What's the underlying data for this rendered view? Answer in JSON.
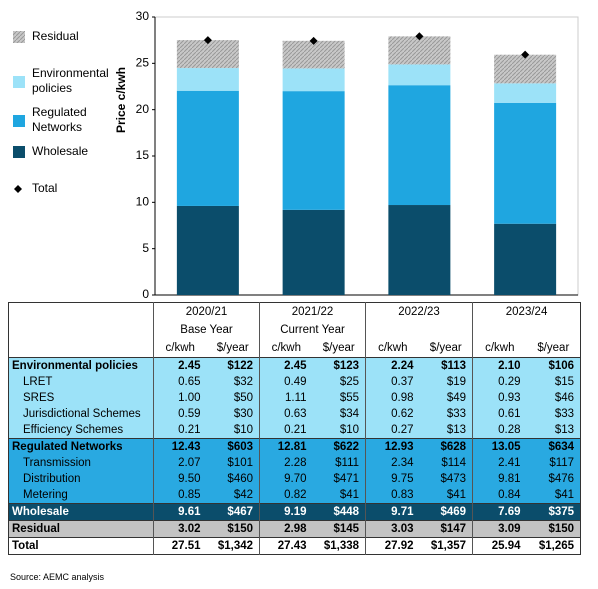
{
  "chart_data": {
    "type": "stacked-bar",
    "y_label": "Price c/kwh",
    "categories": [
      null,
      null,
      null,
      null
    ],
    "ylim": [
      0,
      30
    ],
    "yticks": [
      0,
      5,
      10,
      15,
      20,
      25,
      30
    ],
    "series": [
      {
        "name": "Wholesale",
        "color": "#0b4d6b",
        "values": [
          9.61,
          9.19,
          9.71,
          7.69
        ]
      },
      {
        "name": "Regulated Networks",
        "color": "#1fa6e0",
        "values": [
          12.43,
          12.81,
          12.93,
          13.05
        ]
      },
      {
        "name": "Environmental policies",
        "color": "#9ce2f8",
        "values": [
          2.45,
          2.45,
          2.24,
          2.1
        ]
      },
      {
        "name": "Residual",
        "color": "#bdbdbd",
        "values": [
          3.02,
          2.98,
          3.03,
          3.09
        ]
      },
      {
        "name": "Total",
        "color": "#000000",
        "marker": "diamond",
        "values": [
          27.51,
          27.43,
          27.92,
          25.94
        ]
      }
    ]
  },
  "table": {
    "years": [
      {
        "year": "2020/21",
        "sub": "Base Year"
      },
      {
        "year": "2021/22",
        "sub": "Current Year"
      },
      {
        "year": "2022/23"
      },
      {
        "year": "2023/24"
      }
    ],
    "units": [
      "c/kwh",
      "$/year"
    ],
    "sections": [
      {
        "label": "Environmental policies",
        "values": [
          "2.45",
          "$122",
          "2.45",
          "$123",
          "2.24",
          "$113",
          "2.10",
          "$106"
        ],
        "items": [
          {
            "label": "LRET",
            "values": [
              "0.65",
              "$32",
              "0.49",
              "$25",
              "0.37",
              "$19",
              "0.29",
              "$15"
            ]
          },
          {
            "label": "SRES",
            "values": [
              "1.00",
              "$50",
              "1.11",
              "$55",
              "0.98",
              "$49",
              "0.93",
              "$46"
            ]
          },
          {
            "label": "Jurisdictional Schemes",
            "values": [
              "0.59",
              "$30",
              "0.63",
              "$34",
              "0.62",
              "$33",
              "0.61",
              "$33"
            ]
          },
          {
            "label": "Efficiency Schemes",
            "values": [
              "0.21",
              "$10",
              "0.21",
              "$10",
              "0.27",
              "$13",
              "0.28",
              "$13"
            ]
          }
        ]
      },
      {
        "label": "Regulated Networks",
        "values": [
          "12.43",
          "$603",
          "12.81",
          "$622",
          "12.93",
          "$628",
          "13.05",
          "$634"
        ],
        "items": [
          {
            "label": "Transmission",
            "values": [
              "2.07",
              "$101",
              "2.28",
              "$111",
              "2.34",
              "$114",
              "2.41",
              "$117"
            ]
          },
          {
            "label": "Distribution",
            "values": [
              "9.50",
              "$460",
              "9.70",
              "$471",
              "9.75",
              "$473",
              "9.81",
              "$476"
            ]
          },
          {
            "label": "Metering",
            "values": [
              "0.85",
              "$42",
              "0.82",
              "$41",
              "0.83",
              "$41",
              "0.84",
              "$41"
            ]
          }
        ]
      },
      {
        "label": "Wholesale",
        "values": [
          "9.61",
          "$467",
          "9.19",
          "$448",
          "9.71",
          "$469",
          "7.69",
          "$375"
        ]
      },
      {
        "label": "Residual",
        "values": [
          "3.02",
          "$150",
          "2.98",
          "$145",
          "3.03",
          "$147",
          "3.09",
          "$150"
        ]
      },
      {
        "label": "Total",
        "values": [
          "27.51",
          "$1,342",
          "27.43",
          "$1,338",
          "27.92",
          "$1,357",
          "25.94",
          "$1,265"
        ]
      }
    ],
    "source": "Source: AEMC analysis"
  }
}
